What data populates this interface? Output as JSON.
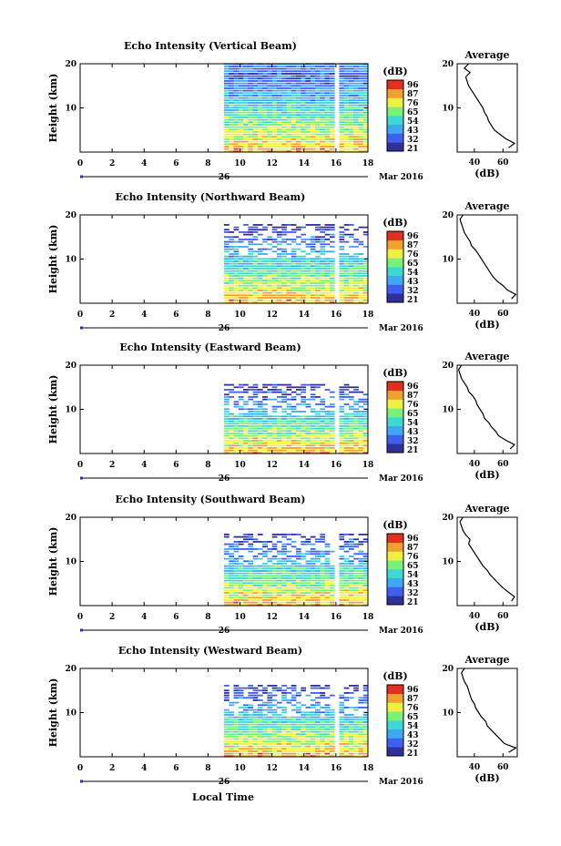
{
  "figure": {
    "xlabel": "Local Time"
  },
  "panels": [
    {
      "title": "Echo Intensity (Vertical Beam)"
    },
    {
      "title": "Echo Intensity (Northward Beam)"
    },
    {
      "title": "Echo Intensity (Eastward Beam)"
    },
    {
      "title": "Echo Intensity (Southward Beam)"
    },
    {
      "title": "Echo Intensity (Westward Beam)"
    }
  ],
  "chart_data": {
    "type": "heatmap",
    "x_axis": {
      "label": "Local Time",
      "ticks": [
        "0",
        "2",
        "4",
        "6",
        "8",
        "10",
        "12",
        "14",
        "16",
        "18"
      ],
      "range": [
        0,
        18
      ],
      "date_marker": "26",
      "date_label": "Mar 2016"
    },
    "y_axis": {
      "label": "Height (km)",
      "ticks": [
        "10",
        "20"
      ],
      "range": [
        0,
        20
      ]
    },
    "colorbar": {
      "unit": "(dB)",
      "ticks": [
        "96",
        "87",
        "76",
        "65",
        "54",
        "43",
        "32",
        "21"
      ],
      "range": [
        21,
        96
      ],
      "colors": [
        "#30309a",
        "#3f5ff0",
        "#3fa8f0",
        "#3fd8d0",
        "#7af07a",
        "#f0f040",
        "#f0a030",
        "#e03020"
      ]
    },
    "data_start_hour": 9.0,
    "data_end_hour": 17.8,
    "gaps_hours": [
      [
        16.0,
        16.3
      ]
    ],
    "series": [
      {
        "name": "Vertical Beam",
        "top_km": 20.0
      },
      {
        "name": "Northward Beam",
        "top_km": 18.0
      },
      {
        "name": "Eastward Beam",
        "top_km": 15.5
      },
      {
        "name": "Southward Beam",
        "top_km": 16.5
      },
      {
        "name": "Westward Beam",
        "top_km": 16.5
      }
    ],
    "profiles": [
      {
        "title": "Average",
        "xlabel": "(dB)",
        "xticks": [
          "40",
          "60"
        ],
        "yticks": [
          "10",
          "20"
        ],
        "xrange": [
          28,
          70
        ],
        "heights_km": [
          1,
          2,
          3,
          4,
          5,
          6,
          7,
          8,
          9,
          10,
          11,
          12,
          13,
          14,
          15,
          16,
          17,
          18,
          19,
          20
        ],
        "values_db": [
          64,
          68,
          62,
          58,
          54,
          52,
          50,
          49,
          47,
          46,
          44,
          42,
          40,
          38,
          36,
          35,
          34,
          37,
          33,
          36
        ]
      },
      {
        "title": "Average",
        "xlabel": "(dB)",
        "xticks": [
          "40",
          "60"
        ],
        "yticks": [
          "10",
          "20"
        ],
        "xrange": [
          28,
          70
        ],
        "heights_km": [
          1,
          2,
          3,
          4,
          5,
          6,
          7,
          8,
          9,
          10,
          11,
          12,
          13,
          14,
          15,
          16,
          17,
          18,
          19,
          20
        ],
        "values_db": [
          66,
          69,
          63,
          60,
          56,
          53,
          51,
          49,
          47,
          45,
          43,
          41,
          38,
          37,
          35,
          33,
          32,
          31,
          30,
          32
        ]
      },
      {
        "title": "Average",
        "xlabel": "(dB)",
        "xticks": [
          "40",
          "60"
        ],
        "yticks": [
          "10",
          "20"
        ],
        "xrange": [
          28,
          70
        ],
        "heights_km": [
          1,
          2,
          3,
          4,
          5,
          6,
          7,
          8,
          9,
          10,
          11,
          12,
          13,
          14,
          15,
          16,
          17,
          18,
          19,
          20
        ],
        "values_db": [
          65,
          68,
          62,
          57,
          55,
          52,
          50,
          47,
          46,
          44,
          42,
          41,
          39,
          36,
          35,
          33,
          31,
          30,
          29,
          31
        ]
      },
      {
        "title": "Average",
        "xlabel": "(dB)",
        "xticks": [
          "40",
          "60"
        ],
        "yticks": [
          "10",
          "20"
        ],
        "xrange": [
          28,
          70
        ],
        "heights_km": [
          1,
          2,
          3,
          4,
          5,
          6,
          7,
          8,
          9,
          10,
          11,
          12,
          13,
          14,
          15,
          16,
          17,
          18,
          19,
          20
        ],
        "values_db": [
          66,
          68,
          64,
          60,
          57,
          54,
          51,
          49,
          46,
          44,
          42,
          40,
          38,
          36,
          37,
          34,
          32,
          31,
          30,
          32
        ]
      },
      {
        "title": "Average",
        "xlabel": "(dB)",
        "xticks": [
          "40",
          "60"
        ],
        "yticks": [
          "10",
          "20"
        ],
        "xrange": [
          28,
          70
        ],
        "heights_km": [
          1,
          2,
          3,
          4,
          5,
          6,
          7,
          8,
          9,
          10,
          11,
          12,
          13,
          14,
          15,
          16,
          17,
          18,
          19,
          20
        ],
        "values_db": [
          64,
          69,
          61,
          58,
          55,
          52,
          49,
          48,
          45,
          43,
          41,
          40,
          38,
          37,
          36,
          35,
          33,
          32,
          31,
          33
        ]
      }
    ]
  }
}
